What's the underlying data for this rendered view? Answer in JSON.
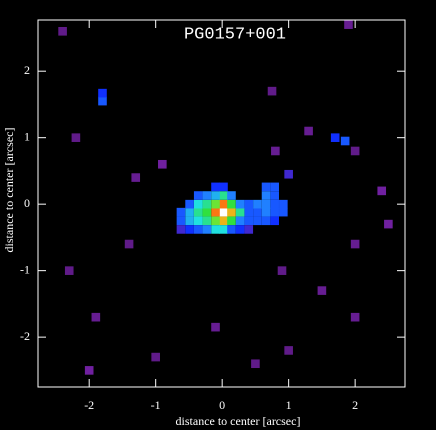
{
  "chart_data": {
    "type": "heatmap",
    "title": "PG0157+001",
    "x_label": "distance to center [arcsec]",
    "y_label": "distance to center [arcsec]",
    "xlim": [
      -2.77,
      2.75
    ],
    "ylim": [
      -2.75,
      2.77
    ],
    "xticks": [
      -2,
      -1,
      0,
      1,
      2
    ],
    "yticks": [
      -2,
      -1,
      0,
      1,
      2
    ],
    "background": "#000000",
    "x": [
      0.02,
      -0.1,
      0.14,
      0.02,
      0.02,
      -0.23,
      -0.36,
      0.27,
      -0.1,
      0.14,
      -0.1,
      0.14,
      -0.23,
      -0.23,
      0.02,
      0.02,
      -0.1,
      -0.36,
      -0.36,
      -0.49,
      -0.49,
      -0.62,
      -0.62,
      -0.49,
      -0.36,
      -0.23,
      -0.1,
      0.14,
      0.27,
      0.27,
      0.4,
      0.4,
      0.4,
      0.53,
      0.53,
      0.66,
      0.66,
      0.79,
      0.79,
      0.92,
      0.66,
      0.79,
      0.92,
      0.66,
      0.53,
      0.79,
      -0.49,
      -0.36,
      0.14,
      0.27,
      0.66,
      0.79,
      -0.1,
      0.02,
      -0.62,
      -0.23,
      0.4,
      -2.4,
      -1.8,
      -1.8,
      -2.2,
      1.7,
      1.85,
      1.3,
      0.75,
      2.0,
      -1.3,
      2.4,
      2.5,
      -0.9,
      0.8,
      -2.3,
      -1.9,
      -0.1,
      0.9,
      1.5,
      2.0,
      1.0,
      -1.0,
      2.0,
      -1.4,
      1.9,
      0.5,
      -2.0,
      1.0
    ],
    "y": [
      -0.12,
      -0.12,
      -0.12,
      0.0,
      -0.25,
      -0.12,
      -0.12,
      -0.12,
      0,
      0,
      -0.25,
      -0.25,
      0,
      -0.25,
      0.13,
      -0.38,
      -0.38,
      0,
      -0.25,
      -0.12,
      -0.25,
      -0.12,
      -0.25,
      0,
      0.13,
      0.13,
      0.13,
      0.13,
      0,
      -0.25,
      -0.12,
      0,
      -0.25,
      -0.12,
      0,
      0,
      0.13,
      0.13,
      0,
      0,
      -0.12,
      -0.12,
      -0.12,
      -0.25,
      -0.25,
      -0.25,
      -0.38,
      -0.38,
      -0.38,
      -0.38,
      0.26,
      0.26,
      0.26,
      0.26,
      -0.38,
      -0.38,
      -0.38,
      2.6,
      1.55,
      1.67,
      1.0,
      1.0,
      0.95,
      1.1,
      1.7,
      0.8,
      0.4,
      0.2,
      -0.3,
      0.6,
      0.8,
      -1.0,
      -1.7,
      -1.85,
      -1.0,
      -1.3,
      -1.7,
      -2.2,
      -2.3,
      -0.6,
      -0.6,
      2.7,
      -2.4,
      -2.5,
      0.45
    ],
    "values": [
      1.0,
      0.8,
      0.75,
      0.8,
      0.75,
      0.55,
      0.5,
      0.5,
      0.6,
      0.55,
      0.6,
      0.55,
      0.5,
      0.5,
      0.5,
      0.45,
      0.45,
      0.45,
      0.45,
      0.4,
      0.4,
      0.3,
      0.3,
      0.3,
      0.3,
      0.35,
      0.4,
      0.35,
      0.35,
      0.35,
      0.3,
      0.3,
      0.3,
      0.3,
      0.35,
      0.35,
      0.35,
      0.3,
      0.3,
      0.3,
      0.35,
      0.3,
      0.3,
      0.3,
      0.3,
      0.25,
      0.25,
      0.3,
      0.3,
      0.25,
      0.3,
      0.3,
      0.25,
      0.25,
      0.2,
      0.35,
      0.2,
      0.1,
      0.3,
      0.25,
      0.1,
      0.25,
      0.3,
      0.12,
      0.1,
      0.1,
      0.12,
      0.15,
      0.15,
      0.15,
      0.12,
      0.1,
      0.12,
      0.12,
      0.1,
      0.12,
      0.12,
      0.1,
      0.1,
      0.12,
      0.1,
      0.12,
      0.1,
      0.15,
      0.2
    ]
  }
}
